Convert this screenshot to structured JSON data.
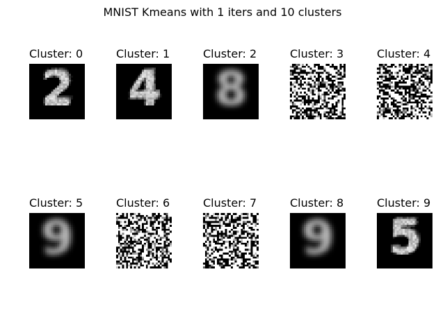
{
  "figure": {
    "title": "MNIST Kmeans with 1 iters and 10 clusters"
  },
  "clusters": [
    {
      "label": "Cluster: 0",
      "look": "digit",
      "digit": "2"
    },
    {
      "label": "Cluster: 1",
      "look": "digit",
      "digit": "4"
    },
    {
      "label": "Cluster: 2",
      "look": "blur",
      "digit": "8"
    },
    {
      "label": "Cluster: 3",
      "look": "noise",
      "digit": ""
    },
    {
      "label": "Cluster: 4",
      "look": "noise",
      "digit": ""
    },
    {
      "label": "Cluster: 5",
      "look": "blur",
      "digit": "9"
    },
    {
      "label": "Cluster: 6",
      "look": "noise",
      "digit": ""
    },
    {
      "label": "Cluster: 7",
      "look": "noise",
      "digit": ""
    },
    {
      "label": "Cluster: 8",
      "look": "blur",
      "digit": "9"
    },
    {
      "label": "Cluster: 9",
      "look": "digit",
      "digit": "5"
    }
  ],
  "colors": {
    "background": "#ffffff",
    "image_bg": "#000000",
    "ink": "#ffffff"
  }
}
